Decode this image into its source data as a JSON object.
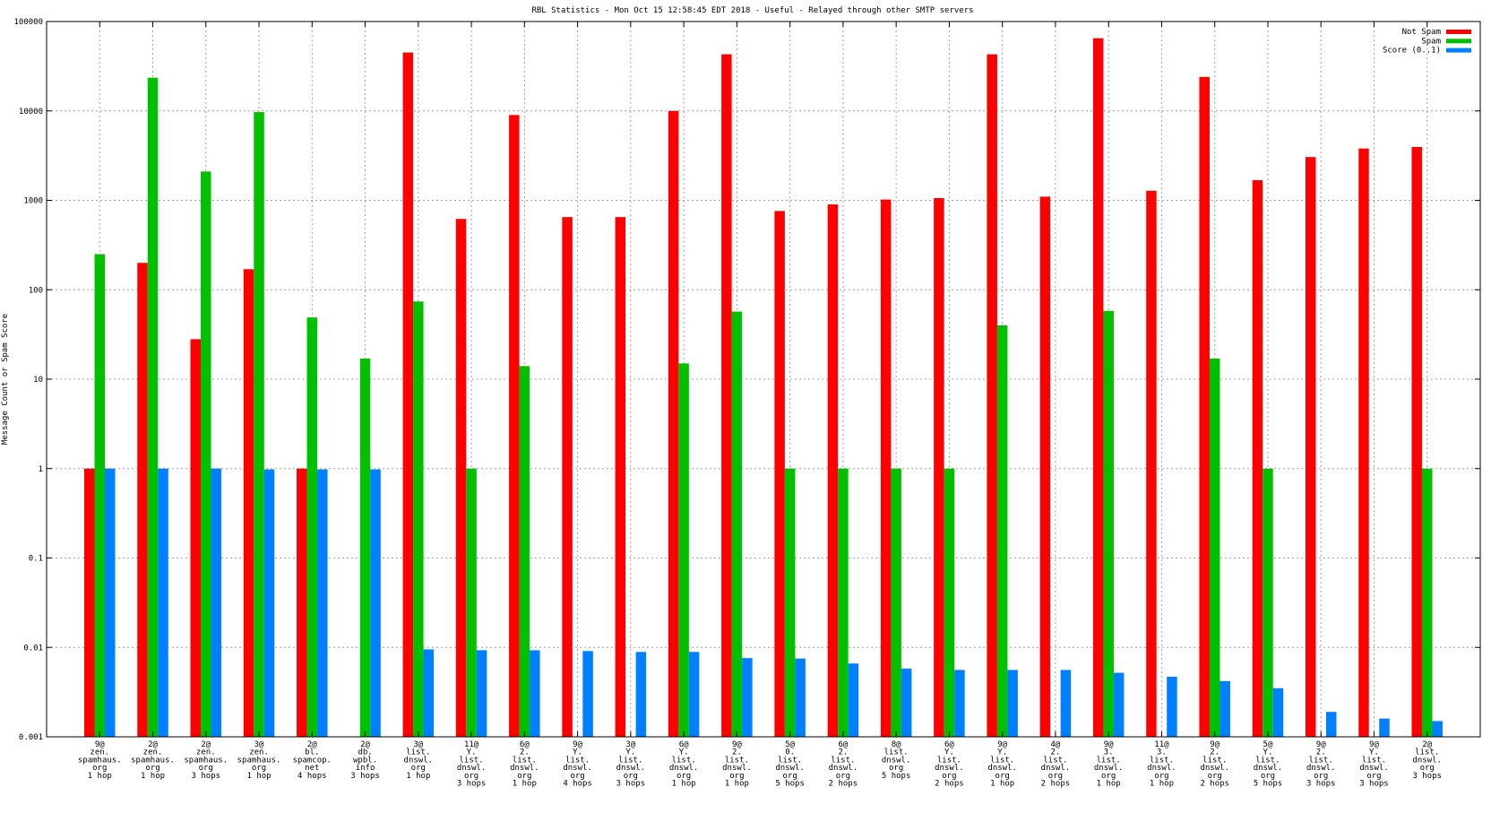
{
  "chart_data": {
    "type": "bar",
    "title": "RBL Statistics - Mon Oct 15 12:58:45 EDT 2018 - Useful - Relayed through other SMTP servers",
    "xlabel": "",
    "ylabel": "Message Count or Spam Score",
    "yscale": "log",
    "ylim": [
      0.001,
      100000
    ],
    "yticks": [
      "0.001",
      "0.01",
      "0.1",
      "1",
      "10",
      "100",
      "1000",
      "10000",
      "100000"
    ],
    "grid": true,
    "legend_position": "top-right",
    "categories": [
      [
        "9@",
        "zen.",
        "spamhaus.",
        "org",
        "1 hop"
      ],
      [
        "2@",
        "zen.",
        "spamhaus.",
        "org",
        "1 hop"
      ],
      [
        "2@",
        "zen.",
        "spamhaus.",
        "org",
        "3 hops"
      ],
      [
        "3@",
        "zen.",
        "spamhaus.",
        "org",
        "1 hop"
      ],
      [
        "2@",
        "bl.",
        "spamcop.",
        "net",
        "4 hops"
      ],
      [
        "2@",
        "db.",
        "wpbl.",
        "info",
        "3 hops"
      ],
      [
        "3@",
        "list.",
        "dnswl.",
        "org",
        "1 hop"
      ],
      [
        "11@",
        "Y.",
        "list.",
        "dnswl.",
        "org",
        "3 hops"
      ],
      [
        "6@",
        "2.",
        "list.",
        "dnswl.",
        "org",
        "1 hop"
      ],
      [
        "9@",
        "Y.",
        "list.",
        "dnswl.",
        "org",
        "4 hops"
      ],
      [
        "3@",
        "Y.",
        "list.",
        "dnswl.",
        "org",
        "3 hops"
      ],
      [
        "6@",
        "Y.",
        "list.",
        "dnswl.",
        "org",
        "1 hop"
      ],
      [
        "9@",
        "2.",
        "list.",
        "dnswl.",
        "org",
        "1 hop"
      ],
      [
        "5@",
        "0.",
        "list.",
        "dnswl.",
        "org",
        "5 hops"
      ],
      [
        "6@",
        "2.",
        "list.",
        "dnswl.",
        "org",
        "2 hops"
      ],
      [
        "8@",
        "list.",
        "dnswl.",
        "org",
        "5 hops"
      ],
      [
        "6@",
        "Y.",
        "list.",
        "dnswl.",
        "org",
        "2 hops"
      ],
      [
        "9@",
        "Y.",
        "list.",
        "dnswl.",
        "org",
        "1 hop"
      ],
      [
        "4@",
        "2.",
        "list.",
        "dnswl.",
        "org",
        "2 hops"
      ],
      [
        "9@",
        "3.",
        "list.",
        "dnswl.",
        "org",
        "1 hop"
      ],
      [
        "11@",
        "3.",
        "list.",
        "dnswl.",
        "org",
        "1 hop"
      ],
      [
        "9@",
        "2.",
        "list.",
        "dnswl.",
        "org",
        "2 hops"
      ],
      [
        "5@",
        "Y.",
        "list.",
        "dnswl.",
        "org",
        "5 hops"
      ],
      [
        "9@",
        "2.",
        "list.",
        "dnswl.",
        "org",
        "3 hops"
      ],
      [
        "9@",
        "Y.",
        "list.",
        "dnswl.",
        "org",
        "3 hops"
      ],
      [
        "2@",
        "list.",
        "dnswl.",
        "org",
        "3 hops"
      ]
    ],
    "series": [
      {
        "name": "Not Spam",
        "color": "#ff0000",
        "values": [
          1,
          200,
          28,
          170,
          1,
          null,
          45000,
          620,
          9000,
          650,
          650,
          10000,
          43000,
          760,
          900,
          1020,
          1060,
          43000,
          1100,
          65000,
          1280,
          24000,
          1680,
          3050,
          3800,
          3950
        ]
      },
      {
        "name": "Spam",
        "color": "#00c000",
        "values": [
          250,
          23500,
          2100,
          9700,
          49,
          17,
          74,
          1,
          14,
          null,
          null,
          15,
          57,
          1,
          1,
          1,
          1,
          40,
          null,
          58,
          null,
          17,
          1,
          null,
          null,
          1
        ]
      },
      {
        "name": "Score (0..1)",
        "color": "#0080ff",
        "values": [
          1,
          1,
          1,
          0.98,
          0.98,
          0.98,
          0.0095,
          0.0093,
          0.0093,
          0.0091,
          0.0089,
          0.0089,
          0.0076,
          0.0075,
          0.0066,
          0.0058,
          0.0056,
          0.0056,
          0.0056,
          0.0052,
          0.0047,
          0.0042,
          0.0035,
          0.0019,
          0.0016,
          0.0015
        ]
      }
    ]
  }
}
